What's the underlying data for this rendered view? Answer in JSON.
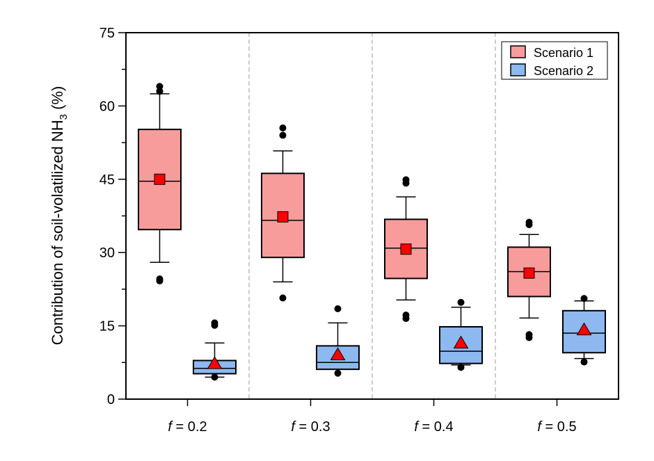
{
  "chart_data": {
    "type": "box",
    "title": "",
    "xlabel": "",
    "ylabel": "Contribution of soil-volatilized NH",
    "ylabel_subscript": "3",
    "ylabel_suffix": " (%)",
    "ylim": [
      0,
      75
    ],
    "yticks": [
      "0",
      "15",
      "30",
      "45",
      "60",
      "75"
    ],
    "ytick_values": [
      0,
      15,
      30,
      45,
      60,
      75
    ],
    "grid": false,
    "group_separators": "dashed vertical lines",
    "legend_placement": "top-right",
    "categories": [
      {
        "italic": "f",
        "rest": " = 0.2"
      },
      {
        "italic": "f",
        "rest": " = 0.3"
      },
      {
        "italic": "f",
        "rest": " = 0.4"
      },
      {
        "italic": "f",
        "rest": " = 0.5"
      }
    ],
    "series": [
      {
        "name": "Scenario 1",
        "color": "#F79C9B",
        "mean_marker": "square",
        "boxes": [
          {
            "whisker_low": 28.0,
            "q1": 34.7,
            "median": 44.6,
            "q3": 55.2,
            "whisker_high": 62.5,
            "mean": 45.0,
            "outliers": [
              24.2,
              24.6,
              63.0,
              64.0
            ]
          },
          {
            "whisker_low": 24.0,
            "q1": 29.0,
            "median": 36.6,
            "q3": 46.2,
            "whisker_high": 50.8,
            "mean": 37.3,
            "outliers": [
              20.7,
              54.0,
              55.5
            ]
          },
          {
            "whisker_low": 20.3,
            "q1": 24.7,
            "median": 30.9,
            "q3": 36.8,
            "whisker_high": 41.4,
            "mean": 30.7,
            "outliers": [
              16.5,
              17.2,
              44.2,
              44.9
            ]
          },
          {
            "whisker_low": 16.6,
            "q1": 21.0,
            "median": 26.1,
            "q3": 31.1,
            "whisker_high": 33.7,
            "mean": 25.8,
            "outliers": [
              12.6,
              13.2,
              35.7,
              36.2
            ]
          }
        ]
      },
      {
        "name": "Scenario 2",
        "color": "#8DB8F0",
        "mean_marker": "triangle",
        "boxes": [
          {
            "whisker_low": 4.5,
            "q1": 5.2,
            "median": 6.3,
            "q3": 7.9,
            "whisker_high": 11.5,
            "mean": 7.1,
            "outliers": [
              4.5,
              15.1,
              15.6
            ]
          },
          {
            "whisker_low": 6.1,
            "q1": 6.1,
            "median": 7.5,
            "q3": 10.9,
            "whisker_high": 15.6,
            "mean": 8.9,
            "outliers": [
              5.3,
              18.5
            ]
          },
          {
            "whisker_low": 7.0,
            "q1": 7.3,
            "median": 9.8,
            "q3": 14.8,
            "whisker_high": 18.8,
            "mean": 11.3,
            "outliers": [
              6.5,
              19.8
            ]
          },
          {
            "whisker_low": 8.3,
            "q1": 9.5,
            "median": 13.5,
            "q3": 18.1,
            "whisker_high": 20.1,
            "mean": 14.0,
            "outliers": [
              7.6,
              20.6
            ]
          }
        ]
      }
    ],
    "mean_marker_color": "#FF0000"
  }
}
